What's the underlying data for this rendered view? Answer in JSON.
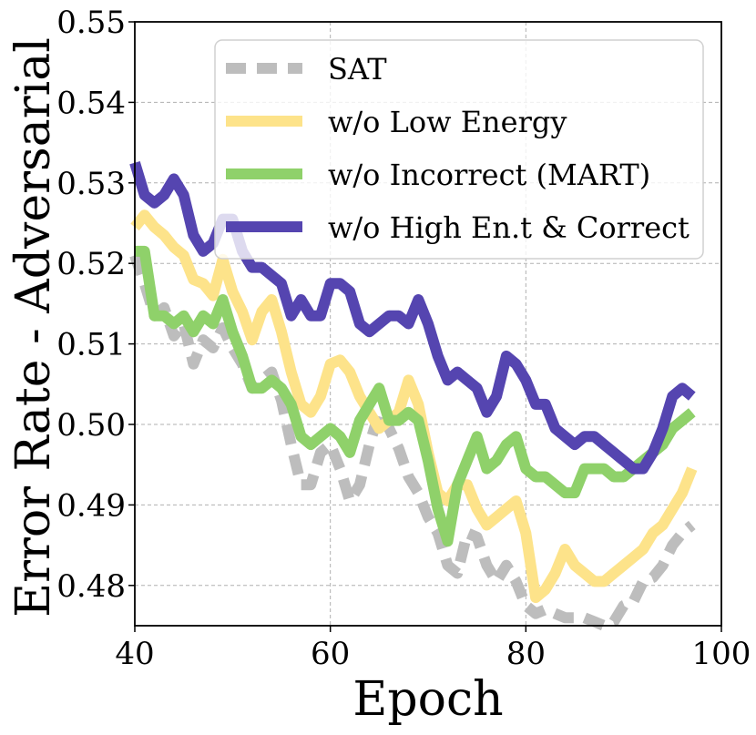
{
  "chart_data": {
    "type": "line",
    "title": "",
    "xlabel": "Epoch",
    "ylabel": "Error Rate - Adversarial",
    "xlim": [
      40,
      100
    ],
    "ylim": [
      0.475,
      0.55
    ],
    "xticks": [
      40,
      60,
      80,
      100
    ],
    "yticks": [
      0.48,
      0.49,
      0.5,
      0.51,
      0.52,
      0.53,
      0.54,
      0.55
    ],
    "xtick_labels": [
      "40",
      "60",
      "80",
      "100"
    ],
    "ytick_labels": [
      "0.48",
      "0.49",
      "0.50",
      "0.51",
      "0.52",
      "0.53",
      "0.54",
      "0.55"
    ],
    "grid": true,
    "legend_position": "top-right",
    "x": [
      40,
      41,
      42,
      43,
      44,
      45,
      46,
      47,
      48,
      49,
      50,
      51,
      52,
      53,
      54,
      55,
      56,
      57,
      58,
      59,
      60,
      61,
      62,
      63,
      64,
      65,
      66,
      67,
      68,
      69,
      70,
      71,
      72,
      73,
      74,
      75,
      76,
      77,
      78,
      79,
      80,
      81,
      82,
      83,
      84,
      85,
      86,
      87,
      88,
      89,
      90,
      91,
      92,
      93,
      94,
      95,
      96,
      97
    ],
    "series": [
      {
        "name": "SAT",
        "color": "#bdbdbd",
        "style": "dashed",
        "values": [
          0.521,
          0.5175,
          0.5135,
          0.5145,
          0.511,
          0.5125,
          0.5075,
          0.5105,
          0.5095,
          0.512,
          0.5095,
          0.5075,
          0.5045,
          0.5055,
          0.5065,
          0.503,
          0.4975,
          0.4925,
          0.4925,
          0.4965,
          0.4975,
          0.4945,
          0.4905,
          0.4925,
          0.4975,
          0.5015,
          0.4995,
          0.497,
          0.4935,
          0.4915,
          0.4885,
          0.4865,
          0.4825,
          0.4815,
          0.4865,
          0.486,
          0.4825,
          0.4805,
          0.4825,
          0.4805,
          0.4775,
          0.4765,
          0.477,
          0.4765,
          0.476,
          0.476,
          0.476,
          0.4755,
          0.475,
          0.4755,
          0.4775,
          0.478,
          0.4805,
          0.481,
          0.4825,
          0.485,
          0.4865,
          0.4875
        ]
      },
      {
        "name": "w/o Low Energy",
        "color": "#fde38a",
        "style": "solid",
        "values": [
          0.5245,
          0.526,
          0.5245,
          0.5235,
          0.522,
          0.521,
          0.518,
          0.5175,
          0.516,
          0.5205,
          0.5165,
          0.514,
          0.5105,
          0.514,
          0.5155,
          0.5115,
          0.5065,
          0.5025,
          0.5015,
          0.5035,
          0.5075,
          0.508,
          0.5065,
          0.5035,
          0.5015,
          0.4995,
          0.5005,
          0.5015,
          0.5055,
          0.5025,
          0.4965,
          0.4915,
          0.4905,
          0.4925,
          0.4925,
          0.4895,
          0.4875,
          0.4885,
          0.4895,
          0.4905,
          0.4865,
          0.4785,
          0.4795,
          0.4815,
          0.4845,
          0.4825,
          0.4815,
          0.4805,
          0.4805,
          0.4815,
          0.4825,
          0.4835,
          0.4845,
          0.4865,
          0.4875,
          0.4895,
          0.4915,
          0.4945
        ]
      },
      {
        "name": "w/o Incorrect (MART)",
        "color": "#8fd16a",
        "style": "solid",
        "values": [
          0.5215,
          0.5215,
          0.5135,
          0.5135,
          0.5125,
          0.5135,
          0.5115,
          0.5135,
          0.5125,
          0.5155,
          0.5115,
          0.5085,
          0.5045,
          0.5045,
          0.5055,
          0.5045,
          0.5025,
          0.4985,
          0.4975,
          0.4985,
          0.4995,
          0.4985,
          0.4965,
          0.5005,
          0.5025,
          0.5045,
          0.5005,
          0.5005,
          0.5015,
          0.5005,
          0.4955,
          0.4895,
          0.4855,
          0.4925,
          0.4955,
          0.4985,
          0.4945,
          0.4955,
          0.4975,
          0.4985,
          0.4945,
          0.4935,
          0.4935,
          0.4925,
          0.4915,
          0.4915,
          0.4945,
          0.4945,
          0.4945,
          0.4935,
          0.4935,
          0.4945,
          0.4955,
          0.4965,
          0.4975,
          0.4995,
          0.5005,
          0.5015
        ]
      },
      {
        "name": "w/o High En.t & Correct",
        "color": "#5545b0",
        "style": "solid",
        "values": [
          0.5325,
          0.5285,
          0.5275,
          0.5285,
          0.5305,
          0.5285,
          0.5235,
          0.5215,
          0.5225,
          0.5255,
          0.5255,
          0.5215,
          0.5195,
          0.5195,
          0.5185,
          0.5175,
          0.5135,
          0.5155,
          0.5135,
          0.5135,
          0.5175,
          0.5175,
          0.5165,
          0.5125,
          0.5115,
          0.5125,
          0.5135,
          0.5135,
          0.5125,
          0.5155,
          0.5125,
          0.5085,
          0.5055,
          0.5065,
          0.5055,
          0.5045,
          0.5015,
          0.5035,
          0.5085,
          0.5075,
          0.5055,
          0.5025,
          0.5025,
          0.4995,
          0.4985,
          0.4975,
          0.4985,
          0.4985,
          0.4975,
          0.4965,
          0.4955,
          0.4945,
          0.4945,
          0.4965,
          0.4995,
          0.5035,
          0.5045,
          0.5035
        ]
      }
    ]
  }
}
